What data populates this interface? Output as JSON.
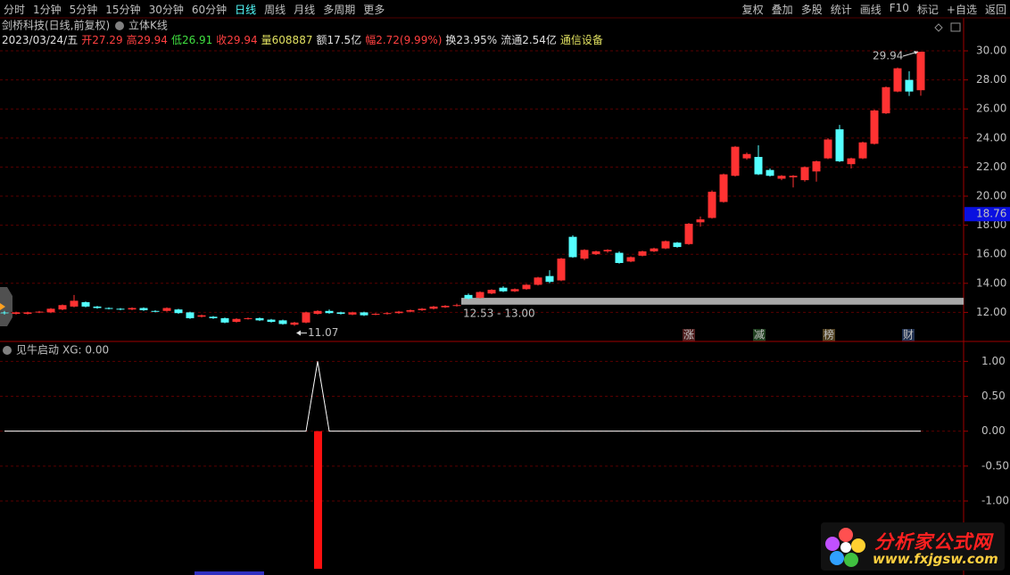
{
  "toolbar": {
    "left": [
      "分时",
      "1分钟",
      "5分钟",
      "15分钟",
      "30分钟",
      "60分钟",
      "日线",
      "周线",
      "月线",
      "多周期",
      "更多"
    ],
    "selected": "日线",
    "right": [
      "复权",
      "叠加",
      "多股",
      "统计",
      "画线",
      "F10",
      "标记",
      "+自选",
      "返回"
    ]
  },
  "header": {
    "stock": "剑桥科技(日线,前复权)",
    "mode": "立体K线"
  },
  "info": [
    {
      "text": "2023/03/24/五",
      "color": "#e0e0e0"
    },
    {
      "text": "开27.29",
      "color": "#ff4040"
    },
    {
      "text": "高29.94",
      "color": "#ff4040"
    },
    {
      "text": "低26.91",
      "color": "#40e040"
    },
    {
      "text": "收29.94",
      "color": "#ff4040"
    },
    {
      "text": "量608887",
      "color": "#e0e060"
    },
    {
      "text": "额17.5亿",
      "color": "#e0e0e0"
    },
    {
      "text": "幅2.72(9.99%)",
      "color": "#ff4040"
    },
    {
      "text": "换23.95%",
      "color": "#e0e0e0"
    },
    {
      "text": "流通2.54亿",
      "color": "#e0e0e0"
    },
    {
      "text": "通信设备",
      "color": "#e0e060"
    }
  ],
  "events": [
    {
      "label": "涨",
      "color": "#ff6060",
      "bg": "#502020"
    },
    {
      "label": "减",
      "color": "#60ff60",
      "bg": "#204020"
    },
    {
      "label": "榜",
      "color": "#ffb040",
      "bg": "#504020"
    },
    {
      "label": "财",
      "color": "#80d0ff",
      "bg": "#203050"
    }
  ],
  "chart_data": [
    {
      "type": "candlestick",
      "up_color": "#ff3232",
      "down_color": "#54ffff",
      "grid": true,
      "open": [
        12.0,
        11.9,
        11.9,
        12.0,
        12.0,
        12.2,
        12.4,
        12.7,
        12.4,
        12.3,
        12.25,
        12.2,
        12.3,
        12.1,
        12.1,
        12.2,
        12.0,
        11.7,
        11.7,
        11.6,
        11.35,
        11.55,
        11.6,
        11.5,
        11.45,
        11.15,
        11.3,
        11.9,
        12.1,
        12.0,
        11.85,
        12.0,
        11.85,
        11.9,
        11.95,
        12.05,
        12.15,
        12.25,
        12.35,
        12.45,
        13.2,
        13.0,
        13.3,
        13.7,
        13.45,
        13.6,
        13.9,
        14.5,
        14.2,
        17.2,
        15.7,
        16.0,
        16.2,
        16.1,
        15.5,
        15.9,
        16.2,
        16.4,
        16.8,
        16.7,
        18.2,
        18.5,
        19.6,
        21.4,
        22.6,
        22.7,
        21.8,
        21.2,
        21.3,
        21.1,
        21.7,
        22.6,
        24.6,
        22.2,
        22.6,
        23.6,
        25.7,
        27.2,
        28.0,
        27.29
      ],
      "high": [
        12.1,
        12.05,
        12.05,
        12.1,
        12.3,
        12.55,
        13.2,
        12.75,
        12.45,
        12.35,
        12.3,
        12.35,
        12.35,
        12.15,
        12.35,
        12.25,
        12.05,
        11.85,
        11.75,
        11.65,
        11.6,
        11.65,
        11.65,
        11.55,
        11.5,
        11.35,
        12.05,
        12.15,
        12.2,
        12.05,
        12.05,
        12.05,
        11.95,
        12.0,
        12.1,
        12.2,
        12.3,
        12.45,
        12.5,
        12.6,
        13.3,
        13.45,
        13.6,
        13.8,
        13.65,
        13.95,
        14.45,
        14.9,
        15.75,
        17.3,
        16.35,
        16.25,
        16.35,
        16.2,
        15.85,
        16.25,
        16.45,
        16.95,
        16.85,
        18.15,
        18.6,
        20.4,
        21.55,
        23.45,
        23.0,
        23.5,
        21.9,
        21.45,
        21.45,
        22.05,
        22.45,
        24.0,
        24.9,
        22.65,
        23.75,
        25.95,
        27.55,
        28.85,
        28.6,
        29.94
      ],
      "low": [
        11.85,
        11.85,
        11.85,
        11.95,
        11.95,
        12.15,
        12.35,
        12.35,
        12.25,
        12.2,
        12.15,
        12.15,
        12.1,
        12.0,
        12.05,
        11.9,
        11.55,
        11.65,
        11.55,
        11.25,
        11.3,
        11.5,
        11.4,
        11.3,
        11.15,
        11.07,
        11.25,
        11.85,
        11.9,
        11.85,
        11.8,
        11.75,
        11.8,
        11.85,
        11.9,
        12.0,
        12.1,
        12.2,
        12.3,
        12.4,
        12.9,
        12.95,
        13.25,
        13.4,
        13.4,
        13.55,
        13.85,
        14.0,
        14.15,
        15.75,
        15.6,
        15.95,
        16.1,
        15.35,
        15.45,
        15.85,
        16.15,
        16.35,
        16.45,
        16.65,
        17.9,
        18.45,
        19.55,
        21.35,
        22.5,
        21.45,
        21.35,
        21.1,
        20.6,
        21.0,
        21.0,
        22.55,
        22.35,
        21.9,
        22.55,
        23.55,
        25.65,
        27.15,
        26.9,
        26.91
      ],
      "close": [
        11.95,
        12.0,
        12.0,
        12.05,
        12.25,
        12.5,
        12.8,
        12.4,
        12.3,
        12.25,
        12.2,
        12.3,
        12.15,
        12.05,
        12.3,
        11.95,
        11.6,
        11.8,
        11.6,
        11.3,
        11.55,
        11.6,
        11.45,
        11.35,
        11.2,
        11.3,
        12.0,
        12.1,
        11.95,
        11.9,
        12.0,
        11.8,
        11.9,
        11.95,
        12.05,
        12.15,
        12.25,
        12.4,
        12.45,
        12.5,
        12.95,
        13.4,
        13.55,
        13.45,
        13.6,
        13.9,
        14.4,
        14.1,
        15.7,
        15.8,
        16.3,
        16.2,
        16.3,
        15.4,
        15.8,
        16.2,
        16.4,
        16.9,
        16.5,
        18.1,
        18.4,
        20.3,
        21.5,
        23.4,
        22.9,
        21.5,
        21.4,
        21.4,
        21.4,
        22.0,
        22.4,
        23.9,
        22.4,
        22.6,
        23.7,
        25.9,
        27.5,
        28.8,
        27.2,
        29.94
      ],
      "ylim": [
        10,
        32.15
      ],
      "yticks": [
        {
          "value": 12,
          "label": "12.00"
        },
        {
          "value": 14,
          "label": "14.00"
        },
        {
          "value": 16,
          "label": "16.00"
        },
        {
          "value": 18,
          "label": "18.00"
        },
        {
          "value": 20,
          "label": "20.00"
        },
        {
          "value": 22,
          "label": "22.00"
        },
        {
          "value": 24,
          "label": "24.00"
        },
        {
          "value": 26,
          "label": "26.00"
        },
        {
          "value": 28,
          "label": "28.00"
        },
        {
          "value": 30,
          "label": "30.00"
        }
      ],
      "price_marker": 18.76,
      "high_mark": 29.94,
      "low_mark": 11.07,
      "range_band": {
        "from": 12.53,
        "to": 13.0,
        "label": "12.53 - 13.00"
      }
    },
    {
      "type": "line",
      "title": "见牛启动",
      "legend": "XG: 0.00",
      "color": "#ffffff",
      "signal_color": "#ff1010",
      "values": [
        0,
        0,
        0,
        0,
        0,
        0,
        0,
        0,
        0,
        0,
        0,
        0,
        0,
        0,
        0,
        0,
        0,
        0,
        0,
        0,
        0,
        0,
        0,
        0,
        0,
        0,
        0,
        1,
        0,
        0,
        0,
        0,
        0,
        0,
        0,
        0,
        0,
        0,
        0,
        0,
        0,
        0,
        0,
        0,
        0,
        0,
        0,
        0,
        0,
        0,
        0,
        0,
        0,
        0,
        0,
        0,
        0,
        0,
        0,
        0,
        0,
        0,
        0,
        0,
        0,
        0,
        0,
        0,
        0,
        0,
        0,
        0,
        0,
        0,
        0,
        0,
        0,
        0,
        0,
        0
      ],
      "ylim": [
        -2.06,
        1.26
      ],
      "yticks": [
        {
          "value": -1,
          "label": "-1.00"
        },
        {
          "value": -0.5,
          "label": "-0.50"
        },
        {
          "value": 0,
          "label": "0.00"
        },
        {
          "value": 0.5,
          "label": "0.50"
        },
        {
          "value": 1,
          "label": "1.00"
        }
      ]
    }
  ],
  "watermark": {
    "name": "分析家公式网",
    "url": "www.fxjgsw.com"
  }
}
